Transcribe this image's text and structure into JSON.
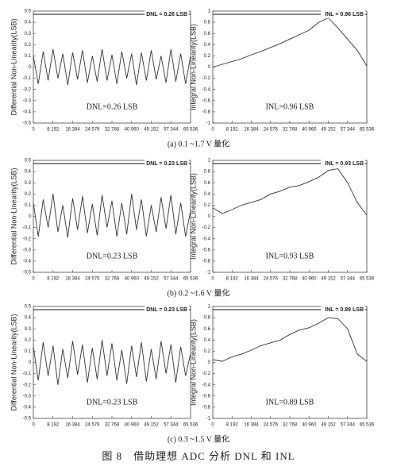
{
  "chart_data": [
    {
      "type": "line",
      "ylabel": "Differential Non-Linearity(LSB)",
      "annotations": [
        "DNL = 0.26 LSB",
        "DNL=0.26 LSB"
      ],
      "x": [
        0,
        2048,
        4096,
        6144,
        8192,
        10240,
        12288,
        14336,
        16384,
        18432,
        20480,
        22528,
        24576,
        26624,
        28672,
        30720,
        32768,
        34816,
        36864,
        38912,
        40960,
        43008,
        45056,
        47104,
        49152,
        51200,
        53248,
        55296,
        57344,
        59392,
        61440,
        63488,
        65536
      ],
      "series": [
        {
          "color": "#333333",
          "values": [
            0.1,
            -0.15,
            0.14,
            -0.12,
            0.16,
            -0.1,
            0.12,
            -0.16,
            0.13,
            -0.11,
            0.15,
            -0.14,
            0.1,
            -0.13,
            0.16,
            -0.12,
            0.11,
            -0.15,
            0.14,
            -0.1,
            0.12,
            -0.16,
            0.13,
            -0.12,
            0.15,
            -0.11,
            0.1,
            -0.14,
            0.16,
            -0.13,
            0.12,
            -0.15,
            0.1
          ]
        }
      ],
      "xlim": [
        0,
        65536
      ],
      "xticks": [
        0,
        {
          "value": 8192,
          "label": "8 192"
        },
        {
          "value": 16384,
          "label": "16 384"
        },
        {
          "value": 24576,
          "label": "24 576"
        },
        {
          "value": 32768,
          "label": "32 768"
        },
        {
          "value": 40960,
          "label": "40 960"
        },
        {
          "value": 49152,
          "label": "49 152"
        },
        {
          "value": 57344,
          "label": "57 344"
        },
        {
          "value": 65536,
          "label": "65 536"
        }
      ],
      "ylim": [
        -0.5,
        0.5
      ],
      "yticks": [
        0.5,
        0.4,
        0.3,
        0.2,
        0.1,
        0,
        -0.1,
        -0.2,
        -0.3,
        -0.4,
        -0.5
      ]
    },
    {
      "type": "line",
      "ylabel": "Integral Non-Linearity(LSB)",
      "annotations": [
        "INL = 0.96 LSB",
        "INL=0.96 LSB"
      ],
      "x": [
        0,
        4096,
        8192,
        12288,
        16384,
        20480,
        24576,
        28672,
        32768,
        36864,
        40960,
        45056,
        49152,
        53248,
        57344,
        61440,
        65536
      ],
      "series": [
        {
          "color": "#333333",
          "values": [
            0,
            0.05,
            0.1,
            0.15,
            0.22,
            0.28,
            0.35,
            0.42,
            0.5,
            0.58,
            0.66,
            0.8,
            0.88,
            0.7,
            0.5,
            0.3,
            0.02
          ]
        }
      ],
      "xlim": [
        0,
        65536
      ],
      "xticks": [
        0,
        {
          "value": 8192,
          "label": "8 192"
        },
        {
          "value": 16384,
          "label": "16 384"
        },
        {
          "value": 24576,
          "label": "24 576"
        },
        {
          "value": 32768,
          "label": "32 768"
        },
        {
          "value": 40960,
          "label": "40 960"
        },
        {
          "value": 49152,
          "label": "49 152"
        },
        {
          "value": 57344,
          "label": "57 344"
        },
        {
          "value": 65536,
          "label": "65 536"
        }
      ],
      "ylim": [
        -1,
        1
      ],
      "yticks": [
        1,
        0.8,
        0.6,
        0.4,
        0.2,
        0,
        -0.2,
        -0.4,
        -0.6,
        -0.8,
        -1
      ]
    },
    {
      "type": "line",
      "ylabel": "Differential Non-Linearity(LSB)",
      "annotations": [
        "DNL = 0.23 LSB",
        "DNL=0.23 LSB"
      ],
      "x": [
        0,
        2048,
        4096,
        6144,
        8192,
        10240,
        12288,
        14336,
        16384,
        18432,
        20480,
        22528,
        24576,
        26624,
        28672,
        30720,
        32768,
        34816,
        36864,
        38912,
        40960,
        43008,
        45056,
        47104,
        49152,
        51200,
        53248,
        55296,
        57344,
        59392,
        61440,
        63488,
        65536
      ],
      "series": [
        {
          "color": "#333333",
          "values": [
            0.12,
            -0.18,
            0.15,
            -0.1,
            0.2,
            -0.14,
            0.1,
            -0.19,
            0.16,
            -0.12,
            0.18,
            -0.15,
            0.11,
            -0.17,
            0.19,
            -0.1,
            0.14,
            -0.18,
            0.12,
            -0.16,
            0.2,
            -0.12,
            0.15,
            -0.18,
            0.1,
            -0.14,
            0.17,
            -0.11,
            0.19,
            -0.16,
            0.12,
            -0.18,
            0.05
          ]
        }
      ],
      "xlim": [
        0,
        65536
      ],
      "xticks": [
        0,
        {
          "value": 8192,
          "label": "8 192"
        },
        {
          "value": 16384,
          "label": "16 384"
        },
        {
          "value": 24576,
          "label": "24 576"
        },
        {
          "value": 32768,
          "label": "32 768"
        },
        {
          "value": 40960,
          "label": "40 960"
        },
        {
          "value": 49152,
          "label": "49 152"
        },
        {
          "value": 57344,
          "label": "57 344"
        },
        {
          "value": 65536,
          "label": "65 536"
        }
      ],
      "ylim": [
        -0.5,
        0.5
      ],
      "yticks": [
        0.5,
        0.4,
        0.3,
        0.2,
        0.1,
        0,
        -0.1,
        -0.2,
        -0.3,
        -0.4,
        -0.5
      ]
    },
    {
      "type": "line",
      "ylabel": "Integral Non-Linearity(LSB)",
      "annotations": [
        "INL = 0.93 LSB",
        "INL=0.93 LSB"
      ],
      "x": [
        0,
        4096,
        8192,
        12288,
        16384,
        20480,
        24576,
        28672,
        32768,
        36864,
        40960,
        45056,
        49152,
        53248,
        57344,
        61440,
        65536
      ],
      "series": [
        {
          "color": "#333333",
          "values": [
            0.15,
            0.05,
            0.12,
            0.2,
            0.25,
            0.3,
            0.4,
            0.45,
            0.52,
            0.55,
            0.62,
            0.7,
            0.82,
            0.85,
            0.6,
            0.25,
            0.02
          ]
        }
      ],
      "xlim": [
        0,
        65536
      ],
      "xticks": [
        0,
        {
          "value": 8192,
          "label": "8 192"
        },
        {
          "value": 16384,
          "label": "16 384"
        },
        {
          "value": 24576,
          "label": "24 576"
        },
        {
          "value": 32768,
          "label": "32 768"
        },
        {
          "value": 40960,
          "label": "40 960"
        },
        {
          "value": 49152,
          "label": "49 152"
        },
        {
          "value": 57344,
          "label": "57 344"
        },
        {
          "value": 65536,
          "label": "65 536"
        }
      ],
      "ylim": [
        -1,
        1
      ],
      "yticks": [
        1,
        0.8,
        0.6,
        0.4,
        0.2,
        0,
        -0.2,
        -0.4,
        -0.6,
        -0.8,
        -1
      ]
    },
    {
      "type": "line",
      "ylabel": "Differential Non-Linearity(LSB)",
      "annotations": [
        "DNL = 0.23 LSB",
        "DNL=0.23 LSB"
      ],
      "x": [
        0,
        2048,
        4096,
        6144,
        8192,
        10240,
        12288,
        14336,
        16384,
        18432,
        20480,
        22528,
        24576,
        26624,
        28672,
        30720,
        32768,
        34816,
        36864,
        38912,
        40960,
        43008,
        45056,
        47104,
        49152,
        51200,
        53248,
        55296,
        57344,
        59392,
        61440,
        63488,
        65536
      ],
      "series": [
        {
          "color": "#333333",
          "values": [
            0.14,
            -0.16,
            0.18,
            -0.12,
            0.15,
            -0.2,
            0.12,
            -0.14,
            0.19,
            -0.11,
            0.16,
            -0.18,
            0.13,
            -0.15,
            0.2,
            -0.12,
            0.17,
            -0.16,
            0.11,
            -0.19,
            0.15,
            -0.13,
            0.18,
            -0.17,
            0.12,
            -0.15,
            0.19,
            -0.1,
            0.16,
            -0.18,
            0.14,
            -0.12,
            0.08
          ]
        }
      ],
      "xlim": [
        0,
        65536
      ],
      "xticks": [
        0,
        {
          "value": 8192,
          "label": "8 192"
        },
        {
          "value": 16384,
          "label": "16 384"
        },
        {
          "value": 24576,
          "label": "24 576"
        },
        {
          "value": 32768,
          "label": "32 768"
        },
        {
          "value": 40960,
          "label": "40 960"
        },
        {
          "value": 49152,
          "label": "49 152"
        },
        {
          "value": 57344,
          "label": "57 344"
        },
        {
          "value": 65536,
          "label": "65 536"
        }
      ],
      "ylim": [
        -0.5,
        0.5
      ],
      "yticks": [
        0.5,
        0.4,
        0.3,
        0.2,
        0.1,
        0,
        -0.1,
        -0.2,
        -0.3,
        -0.4,
        -0.5
      ]
    },
    {
      "type": "line",
      "ylabel": "Integral Non-Linearity(LSB)",
      "annotations": [
        "INL = 0.89 LSB",
        "INL=0.89 LSB"
      ],
      "x": [
        0,
        4096,
        8192,
        12288,
        16384,
        20480,
        24576,
        28672,
        32768,
        36864,
        40960,
        45056,
        49152,
        53248,
        57344,
        61440,
        65536
      ],
      "series": [
        {
          "color": "#333333",
          "values": [
            0.05,
            0.02,
            0.1,
            0.15,
            0.22,
            0.3,
            0.35,
            0.4,
            0.5,
            0.58,
            0.62,
            0.7,
            0.8,
            0.78,
            0.6,
            0.15,
            0.02
          ]
        }
      ],
      "xlim": [
        0,
        65536
      ],
      "xticks": [
        0,
        {
          "value": 8192,
          "label": "8 192"
        },
        {
          "value": 16384,
          "label": "16 384"
        },
        {
          "value": 24576,
          "label": "24 576"
        },
        {
          "value": 32768,
          "label": "32 768"
        },
        {
          "value": 40960,
          "label": "40 960"
        },
        {
          "value": 49152,
          "label": "49 152"
        },
        {
          "value": 57344,
          "label": "57 344"
        },
        {
          "value": 65536,
          "label": "65 536"
        }
      ],
      "ylim": [
        -1,
        1
      ],
      "yticks": [
        1,
        0.8,
        0.6,
        0.4,
        0.2,
        0,
        -0.2,
        -0.4,
        -0.6,
        -0.8,
        -1
      ]
    }
  ],
  "captions": [
    "(a) 0.1 ~1.7 V 量化",
    "(b) 0.2 ~1.6 V 量化",
    "(c) 0.3 ~1.5 V 量化"
  ],
  "figure_caption": "图 8　借助理想 ADC 分析 DNL 和 INL"
}
